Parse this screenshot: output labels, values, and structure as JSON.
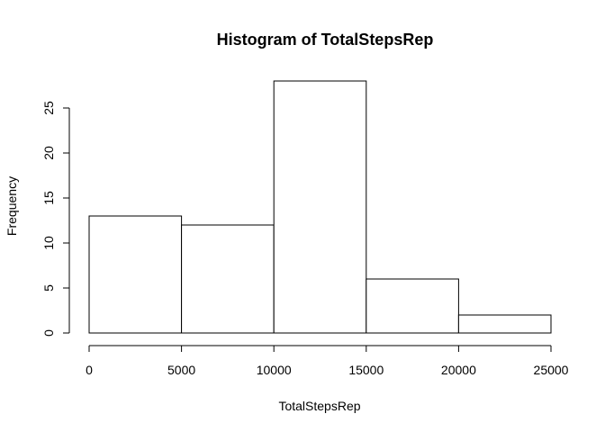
{
  "chart_data": {
    "type": "bar",
    "title": "Histogram of TotalStepsRep",
    "xlabel": "TotalStepsRep",
    "ylabel": "Frequency",
    "bins": [
      {
        "from": 0,
        "to": 5000,
        "count": 13
      },
      {
        "from": 5000,
        "to": 10000,
        "count": 12
      },
      {
        "from": 10000,
        "to": 15000,
        "count": 28
      },
      {
        "from": 15000,
        "to": 20000,
        "count": 6
      },
      {
        "from": 20000,
        "to": 25000,
        "count": 2
      }
    ],
    "xlim": [
      0,
      25000
    ],
    "ylim": [
      0,
      28
    ],
    "xticks": [
      0,
      5000,
      10000,
      15000,
      20000,
      25000
    ],
    "yticks": [
      0,
      5,
      10,
      15,
      20,
      25
    ],
    "grid": false,
    "legend": "none",
    "colors": {
      "bar_fill": "#ffffff",
      "bar_stroke": "#000000"
    }
  }
}
